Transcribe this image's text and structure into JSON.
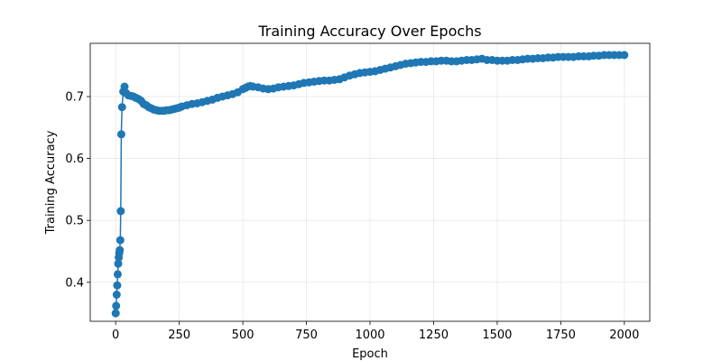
{
  "chart_data": {
    "type": "line",
    "title": "Training Accuracy Over Epochs",
    "xlabel": "Epoch",
    "ylabel": "Training Accuracy",
    "xlim": [
      -100,
      2100
    ],
    "ylim": [
      0.337,
      0.786
    ],
    "xticks": [
      0,
      250,
      500,
      750,
      1000,
      1250,
      1500,
      1750,
      2000
    ],
    "yticks": [
      0.4,
      0.5,
      0.6,
      0.7
    ],
    "grid": true,
    "marker": "circle",
    "color": "#1f77b4",
    "series": [
      {
        "name": "",
        "x": [
          0,
          2,
          4,
          6,
          8,
          10,
          12,
          14,
          16,
          18,
          20,
          22,
          25,
          30,
          35,
          40,
          50,
          60,
          70,
          80,
          90,
          100,
          110,
          120,
          130,
          140,
          150,
          160,
          170,
          180,
          190,
          200,
          210,
          220,
          230,
          240,
          250,
          260,
          280,
          300,
          320,
          340,
          360,
          380,
          400,
          420,
          440,
          460,
          480,
          500,
          510,
          520,
          530,
          540,
          560,
          580,
          600,
          620,
          640,
          660,
          680,
          700,
          720,
          740,
          760,
          780,
          800,
          820,
          840,
          860,
          880,
          900,
          920,
          940,
          960,
          980,
          1000,
          1020,
          1040,
          1060,
          1080,
          1100,
          1120,
          1140,
          1160,
          1180,
          1200,
          1220,
          1240,
          1260,
          1280,
          1300,
          1320,
          1340,
          1360,
          1380,
          1400,
          1420,
          1440,
          1460,
          1480,
          1500,
          1520,
          1540,
          1560,
          1580,
          1600,
          1620,
          1640,
          1660,
          1680,
          1700,
          1720,
          1740,
          1760,
          1780,
          1800,
          1820,
          1840,
          1860,
          1880,
          1900,
          1920,
          1940,
          1960,
          1980,
          2000
        ],
        "y": [
          0.35,
          0.362,
          0.38,
          0.395,
          0.413,
          0.43,
          0.44,
          0.447,
          0.452,
          0.468,
          0.515,
          0.639,
          0.683,
          0.708,
          0.716,
          0.706,
          0.702,
          0.701,
          0.7,
          0.698,
          0.696,
          0.693,
          0.688,
          0.686,
          0.683,
          0.681,
          0.679,
          0.678,
          0.677,
          0.677,
          0.677,
          0.678,
          0.678,
          0.679,
          0.68,
          0.681,
          0.682,
          0.684,
          0.686,
          0.688,
          0.689,
          0.691,
          0.693,
          0.695,
          0.698,
          0.7,
          0.702,
          0.704,
          0.707,
          0.712,
          0.714,
          0.716,
          0.717,
          0.716,
          0.715,
          0.713,
          0.712,
          0.713,
          0.715,
          0.716,
          0.717,
          0.718,
          0.72,
          0.722,
          0.723,
          0.724,
          0.725,
          0.726,
          0.726,
          0.727,
          0.728,
          0.731,
          0.734,
          0.736,
          0.738,
          0.739,
          0.74,
          0.741,
          0.743,
          0.745,
          0.747,
          0.749,
          0.751,
          0.753,
          0.754,
          0.755,
          0.756,
          0.756,
          0.757,
          0.757,
          0.758,
          0.758,
          0.757,
          0.757,
          0.758,
          0.759,
          0.759,
          0.76,
          0.761,
          0.759,
          0.759,
          0.758,
          0.758,
          0.758,
          0.759,
          0.759,
          0.76,
          0.761,
          0.761,
          0.762,
          0.762,
          0.763,
          0.763,
          0.764,
          0.764,
          0.764,
          0.764,
          0.765,
          0.765,
          0.765,
          0.766,
          0.766,
          0.767,
          0.767,
          0.767,
          0.767,
          0.767
        ]
      }
    ]
  }
}
